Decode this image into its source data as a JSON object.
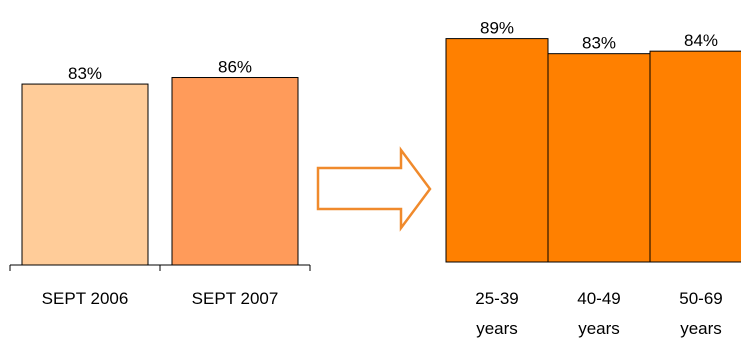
{
  "chart_data": [
    {
      "type": "bar",
      "categories": [
        "SEPT 2006",
        "SEPT 2007"
      ],
      "values": [
        83,
        86
      ],
      "data_labels": [
        "83%",
        "86%"
      ],
      "colors": [
        "#ffcc99",
        "#ff9b5a"
      ],
      "ylim": [
        0,
        100
      ],
      "grid": false,
      "legend": "none"
    },
    {
      "type": "bar",
      "categories": [
        [
          "25-39",
          "years"
        ],
        [
          "40-49",
          "years"
        ],
        [
          "50-69",
          "years"
        ]
      ],
      "values": [
        89,
        83,
        84
      ],
      "data_labels": [
        "89%",
        "83%",
        "84%"
      ],
      "colors": [
        "#ff8000",
        "#ff8000",
        "#ff8000"
      ],
      "ylim": [
        0,
        100
      ],
      "grid": false,
      "legend": "none"
    }
  ],
  "connector": {
    "icon": "right-arrow-icon",
    "color": "#f08a2c"
  }
}
